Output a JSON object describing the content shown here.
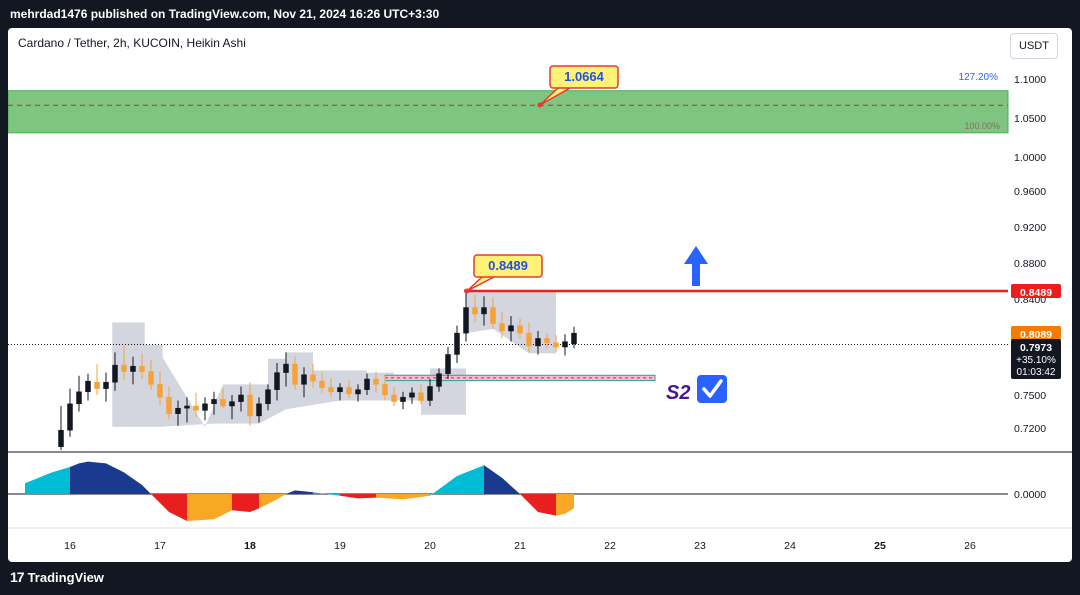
{
  "header": {
    "published_text": "mehrdad1476 published on TradingView.com, Nov 21, 2024 16:26 UTC+3:30"
  },
  "footer": {
    "logo_text": "TradingView",
    "logo_mark": "17"
  },
  "symbol": {
    "title": "Cardano / Tether, 2h, KUCOIN, Heikin Ashi",
    "currency": "USDT"
  },
  "colors": {
    "up": "#131722",
    "down": "#f7a13a",
    "grid_zone": "#4caf50",
    "red_line": "#e91e1e",
    "cloud": "#d1d4dc",
    "osc_cyan": "#00bcd4",
    "osc_navy": "#1a3a8f",
    "osc_red": "#e91e1e",
    "osc_orange": "#f9a825",
    "callout_bg": "#fff176",
    "callout_border": "#e53935",
    "callout_text": "#1e53e5",
    "arrow": "#2962ff",
    "s2": "#4a148c"
  },
  "annotations": {
    "target_label": "1.0664",
    "peak_label": "0.8489",
    "support_label": "S2",
    "fib_top": "127.20%",
    "fib_bottom": "100.00%"
  },
  "price_scale": {
    "red_tag": "0.8489",
    "orange_tag": "0.8089",
    "current_price": "0.7973",
    "change": "+35.10%",
    "countdown": "01:03:42",
    "osc_zero": "0.0000"
  },
  "chart_data": {
    "type": "candlestick",
    "title": "Cardano / Tether, 2h, KUCOIN, Heikin Ashi",
    "y_ticks": [
      "1.1000",
      "1.0500",
      "1.0000",
      "0.9600",
      "0.9200",
      "0.8800",
      "0.8400",
      "0.7500",
      "0.7200"
    ],
    "x_ticks": [
      "16",
      "17",
      "18",
      "19",
      "20",
      "21",
      "22",
      "23",
      "24",
      "25",
      "26"
    ],
    "ylim": [
      0.695,
      1.135
    ],
    "target_zone": [
      1.031,
      1.085
    ],
    "target_level": 1.0664,
    "resistance_level": 0.8489,
    "support_zone": [
      0.7635,
      0.7685
    ],
    "last_price": 0.7973,
    "candles": [
      {
        "x": 15.9,
        "o": 0.703,
        "h": 0.74,
        "l": 0.7,
        "c": 0.718
      },
      {
        "x": 16.0,
        "o": 0.718,
        "h": 0.756,
        "l": 0.712,
        "c": 0.742
      },
      {
        "x": 16.1,
        "o": 0.742,
        "h": 0.768,
        "l": 0.735,
        "c": 0.753
      },
      {
        "x": 16.2,
        "o": 0.753,
        "h": 0.77,
        "l": 0.745,
        "c": 0.763
      },
      {
        "x": 16.3,
        "o": 0.762,
        "h": 0.779,
        "l": 0.75,
        "c": 0.756
      },
      {
        "x": 16.4,
        "o": 0.756,
        "h": 0.771,
        "l": 0.744,
        "c": 0.762
      },
      {
        "x": 16.5,
        "o": 0.762,
        "h": 0.79,
        "l": 0.754,
        "c": 0.778
      },
      {
        "x": 16.6,
        "o": 0.778,
        "h": 0.796,
        "l": 0.764,
        "c": 0.772
      },
      {
        "x": 16.7,
        "o": 0.772,
        "h": 0.786,
        "l": 0.76,
        "c": 0.777
      },
      {
        "x": 16.8,
        "o": 0.777,
        "h": 0.789,
        "l": 0.765,
        "c": 0.772
      },
      {
        "x": 16.9,
        "o": 0.772,
        "h": 0.783,
        "l": 0.755,
        "c": 0.76
      },
      {
        "x": 17.0,
        "o": 0.76,
        "h": 0.772,
        "l": 0.74,
        "c": 0.748
      },
      {
        "x": 17.1,
        "o": 0.748,
        "h": 0.758,
        "l": 0.728,
        "c": 0.733
      },
      {
        "x": 17.2,
        "o": 0.733,
        "h": 0.745,
        "l": 0.722,
        "c": 0.738
      },
      {
        "x": 17.3,
        "o": 0.738,
        "h": 0.748,
        "l": 0.725,
        "c": 0.74
      },
      {
        "x": 17.4,
        "o": 0.74,
        "h": 0.752,
        "l": 0.73,
        "c": 0.736
      },
      {
        "x": 17.5,
        "o": 0.736,
        "h": 0.748,
        "l": 0.727,
        "c": 0.742
      },
      {
        "x": 17.6,
        "o": 0.742,
        "h": 0.753,
        "l": 0.732,
        "c": 0.746
      },
      {
        "x": 17.7,
        "o": 0.746,
        "h": 0.756,
        "l": 0.738,
        "c": 0.74
      },
      {
        "x": 17.8,
        "o": 0.74,
        "h": 0.75,
        "l": 0.728,
        "c": 0.744
      },
      {
        "x": 17.9,
        "o": 0.744,
        "h": 0.758,
        "l": 0.735,
        "c": 0.75
      },
      {
        "x": 18.0,
        "o": 0.75,
        "h": 0.762,
        "l": 0.722,
        "c": 0.731
      },
      {
        "x": 18.1,
        "o": 0.731,
        "h": 0.748,
        "l": 0.725,
        "c": 0.742
      },
      {
        "x": 18.2,
        "o": 0.742,
        "h": 0.76,
        "l": 0.736,
        "c": 0.755
      },
      {
        "x": 18.3,
        "o": 0.755,
        "h": 0.78,
        "l": 0.745,
        "c": 0.771
      },
      {
        "x": 18.4,
        "o": 0.771,
        "h": 0.79,
        "l": 0.758,
        "c": 0.779
      },
      {
        "x": 18.5,
        "o": 0.779,
        "h": 0.786,
        "l": 0.755,
        "c": 0.76
      },
      {
        "x": 18.6,
        "o": 0.76,
        "h": 0.776,
        "l": 0.748,
        "c": 0.769
      },
      {
        "x": 18.7,
        "o": 0.769,
        "h": 0.779,
        "l": 0.757,
        "c": 0.763
      },
      {
        "x": 18.8,
        "o": 0.763,
        "h": 0.771,
        "l": 0.752,
        "c": 0.757
      },
      {
        "x": 18.9,
        "o": 0.757,
        "h": 0.766,
        "l": 0.748,
        "c": 0.753
      },
      {
        "x": 19.0,
        "o": 0.753,
        "h": 0.761,
        "l": 0.745,
        "c": 0.757
      },
      {
        "x": 19.1,
        "o": 0.757,
        "h": 0.764,
        "l": 0.747,
        "c": 0.751
      },
      {
        "x": 19.2,
        "o": 0.751,
        "h": 0.76,
        "l": 0.744,
        "c": 0.755
      },
      {
        "x": 19.3,
        "o": 0.755,
        "h": 0.77,
        "l": 0.75,
        "c": 0.765
      },
      {
        "x": 19.4,
        "o": 0.765,
        "h": 0.772,
        "l": 0.752,
        "c": 0.76
      },
      {
        "x": 19.5,
        "o": 0.76,
        "h": 0.768,
        "l": 0.745,
        "c": 0.75
      },
      {
        "x": 19.6,
        "o": 0.75,
        "h": 0.758,
        "l": 0.74,
        "c": 0.744
      },
      {
        "x": 19.7,
        "o": 0.744,
        "h": 0.753,
        "l": 0.737,
        "c": 0.748
      },
      {
        "x": 19.8,
        "o": 0.748,
        "h": 0.757,
        "l": 0.742,
        "c": 0.752
      },
      {
        "x": 19.9,
        "o": 0.752,
        "h": 0.76,
        "l": 0.742,
        "c": 0.745
      },
      {
        "x": 20.0,
        "o": 0.745,
        "h": 0.765,
        "l": 0.74,
        "c": 0.758
      },
      {
        "x": 20.1,
        "o": 0.758,
        "h": 0.775,
        "l": 0.753,
        "c": 0.77
      },
      {
        "x": 20.2,
        "o": 0.77,
        "h": 0.795,
        "l": 0.765,
        "c": 0.788
      },
      {
        "x": 20.3,
        "o": 0.788,
        "h": 0.815,
        "l": 0.78,
        "c": 0.808
      },
      {
        "x": 20.4,
        "o": 0.808,
        "h": 0.849,
        "l": 0.8,
        "c": 0.832
      },
      {
        "x": 20.5,
        "o": 0.832,
        "h": 0.845,
        "l": 0.818,
        "c": 0.826
      },
      {
        "x": 20.6,
        "o": 0.826,
        "h": 0.843,
        "l": 0.815,
        "c": 0.832
      },
      {
        "x": 20.7,
        "o": 0.832,
        "h": 0.842,
        "l": 0.812,
        "c": 0.817
      },
      {
        "x": 20.8,
        "o": 0.817,
        "h": 0.828,
        "l": 0.803,
        "c": 0.81
      },
      {
        "x": 20.9,
        "o": 0.81,
        "h": 0.824,
        "l": 0.8,
        "c": 0.815
      },
      {
        "x": 21.0,
        "o": 0.815,
        "h": 0.822,
        "l": 0.803,
        "c": 0.808
      },
      {
        "x": 21.1,
        "o": 0.808,
        "h": 0.818,
        "l": 0.79,
        "c": 0.796
      },
      {
        "x": 21.2,
        "o": 0.796,
        "h": 0.81,
        "l": 0.788,
        "c": 0.803
      },
      {
        "x": 21.3,
        "o": 0.803,
        "h": 0.808,
        "l": 0.794,
        "c": 0.799
      },
      {
        "x": 21.4,
        "o": 0.799,
        "h": 0.806,
        "l": 0.79,
        "c": 0.795
      },
      {
        "x": 21.5,
        "o": 0.795,
        "h": 0.807,
        "l": 0.787,
        "c": 0.8
      },
      {
        "x": 21.6,
        "o": 0.798,
        "h": 0.814,
        "l": 0.794,
        "c": 0.808
      }
    ],
    "cloud": [
      [
        16.47,
        0.721
      ],
      [
        16.47,
        0.818
      ],
      [
        16.83,
        0.818
      ],
      [
        16.83,
        0.797
      ],
      [
        17.03,
        0.797
      ],
      [
        17.03,
        0.785
      ],
      [
        17.5,
        0.721
      ],
      [
        17.7,
        0.76
      ],
      [
        18.2,
        0.76
      ],
      [
        18.2,
        0.784
      ],
      [
        18.4,
        0.784
      ],
      [
        18.4,
        0.79
      ],
      [
        18.7,
        0.79
      ],
      [
        18.7,
        0.773
      ],
      [
        19.3,
        0.773
      ],
      [
        19.3,
        0.771
      ],
      [
        19.6,
        0.771
      ],
      [
        19.6,
        0.769
      ],
      [
        20.0,
        0.769
      ],
      [
        20.0,
        0.775
      ],
      [
        20.4,
        0.775
      ],
      [
        20.4,
        0.849
      ],
      [
        21.4,
        0.849
      ],
      [
        21.4,
        0.789
      ],
      [
        21.1,
        0.789
      ],
      [
        20.7,
        0.812
      ],
      [
        20.4,
        0.808
      ],
      [
        20.4,
        0.732
      ],
      [
        19.9,
        0.732
      ],
      [
        19.9,
        0.745
      ],
      [
        19.0,
        0.745
      ],
      [
        18.4,
        0.737
      ],
      [
        18.1,
        0.724
      ],
      [
        17.6,
        0.724
      ],
      [
        17.0,
        0.721
      ]
    ],
    "oscillator_segments": [
      {
        "x0": 15.5,
        "x1": 16.0,
        "color": "cyan",
        "v": [
          [
            15.5,
            0.3
          ],
          [
            15.8,
            0.6
          ],
          [
            16.0,
            0.75
          ]
        ]
      },
      {
        "x0": 16.0,
        "x1": 16.2,
        "color": "navy",
        "v": [
          [
            16.0,
            0.75
          ],
          [
            16.1,
            0.85
          ],
          [
            16.2,
            0.9
          ]
        ]
      },
      {
        "x0": 16.2,
        "x1": 16.6,
        "color": "navy",
        "v": [
          [
            16.2,
            0.9
          ],
          [
            16.4,
            0.85
          ],
          [
            16.6,
            0.6
          ]
        ]
      },
      {
        "x0": 16.6,
        "x1": 16.9,
        "color": "navy",
        "v": [
          [
            16.6,
            0.6
          ],
          [
            16.8,
            0.25
          ],
          [
            16.9,
            0.0
          ]
        ]
      },
      {
        "x0": 16.9,
        "x1": 17.3,
        "color": "red",
        "v": [
          [
            16.9,
            0.0
          ],
          [
            17.1,
            -0.5
          ],
          [
            17.3,
            -0.75
          ]
        ]
      },
      {
        "x0": 17.3,
        "x1": 17.8,
        "color": "orange",
        "v": [
          [
            17.3,
            -0.75
          ],
          [
            17.6,
            -0.7
          ],
          [
            17.8,
            -0.45
          ]
        ]
      },
      {
        "x0": 17.8,
        "x1": 18.1,
        "color": "red",
        "v": [
          [
            17.8,
            -0.45
          ],
          [
            18.0,
            -0.5
          ],
          [
            18.1,
            -0.4
          ]
        ]
      },
      {
        "x0": 18.1,
        "x1": 18.4,
        "color": "orange",
        "v": [
          [
            18.1,
            -0.4
          ],
          [
            18.3,
            -0.15
          ],
          [
            18.4,
            0.0
          ]
        ]
      },
      {
        "x0": 18.4,
        "x1": 18.7,
        "color": "navy",
        "v": [
          [
            18.4,
            0.0
          ],
          [
            18.5,
            0.1
          ],
          [
            18.7,
            0.05
          ]
        ]
      },
      {
        "x0": 18.7,
        "x1": 19.0,
        "color": "cyan",
        "v": [
          [
            18.7,
            0.05
          ],
          [
            18.85,
            0.0
          ],
          [
            19.0,
            -0.05
          ]
        ]
      },
      {
        "x0": 19.0,
        "x1": 19.4,
        "color": "red",
        "v": [
          [
            19.0,
            -0.05
          ],
          [
            19.2,
            -0.12
          ],
          [
            19.4,
            -0.1
          ]
        ]
      },
      {
        "x0": 19.4,
        "x1": 20.0,
        "color": "orange",
        "v": [
          [
            19.4,
            -0.1
          ],
          [
            19.7,
            -0.15
          ],
          [
            20.0,
            -0.05
          ]
        ]
      },
      {
        "x0": 20.0,
        "x1": 20.6,
        "color": "cyan",
        "v": [
          [
            20.0,
            -0.05
          ],
          [
            20.3,
            0.5
          ],
          [
            20.6,
            0.8
          ]
        ]
      },
      {
        "x0": 20.6,
        "x1": 21.0,
        "color": "navy",
        "v": [
          [
            20.6,
            0.8
          ],
          [
            20.8,
            0.45
          ],
          [
            21.0,
            0.0
          ]
        ]
      },
      {
        "x0": 21.0,
        "x1": 21.4,
        "color": "red",
        "v": [
          [
            21.0,
            0.0
          ],
          [
            21.2,
            -0.5
          ],
          [
            21.4,
            -0.6
          ]
        ]
      },
      {
        "x0": 21.4,
        "x1": 21.6,
        "color": "orange",
        "v": [
          [
            21.4,
            -0.6
          ],
          [
            21.5,
            -0.55
          ],
          [
            21.6,
            -0.4
          ]
        ]
      }
    ]
  }
}
